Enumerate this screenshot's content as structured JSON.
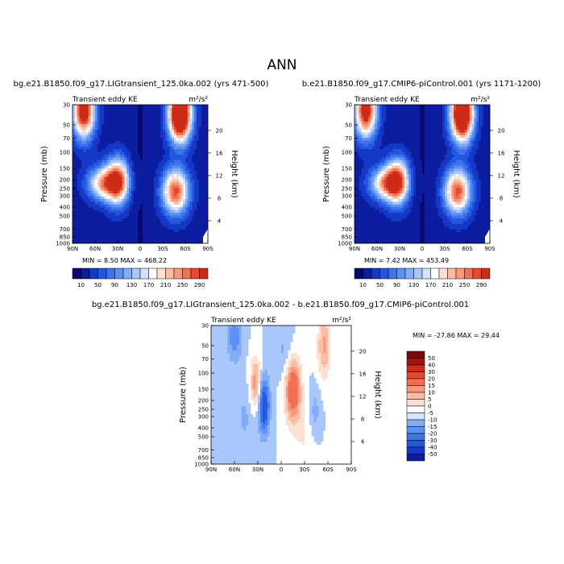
{
  "page_title": "ANN",
  "colors": {
    "low": "#0a1e8c",
    "mid": "#ffffff",
    "high": "#7a0a0a"
  },
  "chart_data": [
    {
      "type": "heatmap",
      "title": "bg.e21.B1850.f09_g17.LIGtransient_125.0ka.002 (yrs 471-500)",
      "subtitle_left": "Transient eddy KE",
      "subtitle_right": "m²/s²",
      "ylabel": "Pressure (mb)",
      "ylabel_right": "Height (km)",
      "x_tick_labels": [
        "90N",
        "60N",
        "30N",
        "0",
        "30S",
        "60S",
        "90S"
      ],
      "x_ticks": [
        90,
        60,
        30,
        0,
        -30,
        -60,
        -90
      ],
      "y_ticks": [
        30,
        50,
        70,
        100,
        150,
        200,
        250,
        300,
        400,
        500,
        700,
        850,
        1000
      ],
      "height_ticks": [
        4,
        8,
        12,
        16,
        20
      ],
      "xlim": [
        90,
        -90
      ],
      "ylim_pressure": [
        1000,
        30
      ],
      "stats_text": "MIN =    8.50   MAX = 468.22",
      "colorbar_labels": [
        "10",
        "50",
        "90",
        "130",
        "170",
        "210",
        "250",
        "290"
      ],
      "colorbar_levels": [
        10,
        30,
        50,
        70,
        90,
        110,
        130,
        150,
        170,
        190,
        210,
        230,
        250,
        270,
        290
      ],
      "features": [
        {
          "lat": 75,
          "p": 35,
          "value": 340,
          "dlat": 10,
          "dlogp": 0.2
        },
        {
          "lat": -53,
          "p": 38,
          "value": 468,
          "dlat": 10,
          "dlogp": 0.2
        },
        {
          "lat": 30,
          "p": 210,
          "value": 295,
          "dlat": 11,
          "dlogp": 0.17
        },
        {
          "lat": -47,
          "p": 270,
          "value": 280,
          "dlat": 12,
          "dlogp": 0.17
        },
        {
          "lat": 50,
          "p": 220,
          "value": 210,
          "dlat": 14,
          "dlogp": 0.12
        }
      ]
    },
    {
      "type": "heatmap",
      "title": "b.e21.B1850.f09_g17.CMIP6-piControl.001 (yrs 1171-1200)",
      "subtitle_left": "Transient eddy KE",
      "subtitle_right": "m²/s²",
      "ylabel": "Pressure (mb)",
      "ylabel_right": "Height (km)",
      "x_tick_labels": [
        "90N",
        "60N",
        "30N",
        "0",
        "30S",
        "60S",
        "90S"
      ],
      "x_ticks": [
        90,
        60,
        30,
        0,
        -30,
        -60,
        -90
      ],
      "y_ticks": [
        30,
        50,
        70,
        100,
        150,
        200,
        250,
        300,
        400,
        500,
        700,
        850,
        1000
      ],
      "height_ticks": [
        4,
        8,
        12,
        16,
        20
      ],
      "xlim": [
        90,
        -90
      ],
      "ylim_pressure": [
        1000,
        30
      ],
      "stats_text": "MIN =    7.42   MAX = 453.49",
      "colorbar_labels": [
        "10",
        "50",
        "90",
        "130",
        "170",
        "210",
        "250",
        "290"
      ],
      "colorbar_levels": [
        10,
        30,
        50,
        70,
        90,
        110,
        130,
        150,
        170,
        190,
        210,
        230,
        250,
        270,
        290
      ],
      "features": [
        {
          "lat": 75,
          "p": 35,
          "value": 330,
          "dlat": 10,
          "dlogp": 0.2
        },
        {
          "lat": -53,
          "p": 38,
          "value": 453,
          "dlat": 10,
          "dlogp": 0.2
        },
        {
          "lat": 33,
          "p": 210,
          "value": 280,
          "dlat": 11,
          "dlogp": 0.17
        },
        {
          "lat": -47,
          "p": 270,
          "value": 280,
          "dlat": 12,
          "dlogp": 0.17
        },
        {
          "lat": 50,
          "p": 220,
          "value": 205,
          "dlat": 14,
          "dlogp": 0.12
        }
      ]
    },
    {
      "type": "heatmap",
      "title": "bg.e21.B1850.f09_g17.LIGtransient_125.0ka.002 - b.e21.B1850.f09_g17.CMIP6-piControl.001",
      "subtitle_left": "Transient eddy KE",
      "subtitle_right": "m²/s²",
      "ylabel": "Pressure (mb)",
      "ylabel_right": "Height (km)",
      "x_tick_labels": [
        "90N",
        "60N",
        "30N",
        "0",
        "30S",
        "60S",
        "90S"
      ],
      "x_ticks": [
        90,
        60,
        30,
        0,
        -30,
        -60,
        -90
      ],
      "y_ticks": [
        30,
        50,
        70,
        100,
        150,
        200,
        250,
        300,
        400,
        500,
        700,
        850,
        1000
      ],
      "height_ticks": [
        4,
        8,
        12,
        16,
        20
      ],
      "xlim": [
        90,
        -90
      ],
      "ylim_pressure": [
        1000,
        30
      ],
      "stats_text": "MIN =  -27.86   MAX =  29.44",
      "colorbar_labels": [
        "50",
        "40",
        "30",
        "20",
        "15",
        "10",
        "5",
        "0",
        "-5",
        "-10",
        "-15",
        "-20",
        "-30",
        "-40",
        "-50"
      ],
      "colorbar_levels": [
        -50,
        -40,
        -30,
        -20,
        -15,
        -10,
        -5,
        0,
        5,
        10,
        15,
        20,
        30,
        40,
        50
      ],
      "features": [
        {
          "lat": -15,
          "p": 150,
          "value": 29,
          "dlat": 7,
          "dlogp": 0.25
        },
        {
          "lat": 33,
          "p": 130,
          "value": 18,
          "dlat": 5,
          "dlogp": 0.2
        },
        {
          "lat": 22,
          "p": 230,
          "value": -28,
          "dlat": 5,
          "dlogp": 0.22
        },
        {
          "lat": 60,
          "p": 40,
          "value": -14,
          "dlat": 7,
          "dlogp": 0.2
        },
        {
          "lat": -55,
          "p": 50,
          "value": 16,
          "dlat": 6,
          "dlogp": 0.25
        },
        {
          "lat": -43,
          "p": 270,
          "value": -8,
          "dlat": 5,
          "dlogp": 0.2
        },
        {
          "lat": -5,
          "p": 60,
          "value": -7,
          "dlat": 8,
          "dlogp": 0.2
        },
        {
          "lat": 47,
          "p": 300,
          "value": -6,
          "dlat": 8,
          "dlogp": 0.25
        },
        {
          "lat": -30,
          "p": 500,
          "value": 5,
          "dlat": 10,
          "dlogp": 0.3
        }
      ]
    }
  ]
}
